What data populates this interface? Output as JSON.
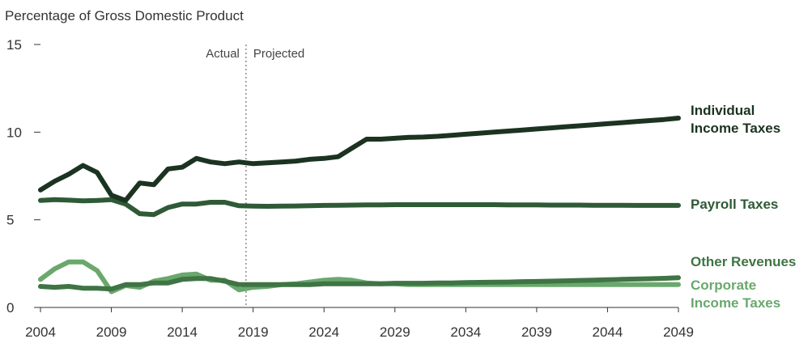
{
  "chart_data": {
    "type": "line",
    "ylabel": "Percentage of Gross Domestic Product",
    "xlim": [
      2004,
      2049
    ],
    "ylim": [
      0,
      15
    ],
    "x_ticks": [
      "2004",
      "2009",
      "2014",
      "2019",
      "2024",
      "2029",
      "2034",
      "2039",
      "2044",
      "2049"
    ],
    "y_ticks": [
      "0",
      "5",
      "10",
      "15"
    ],
    "annotations": {
      "actual": "Actual",
      "projected": "Projected",
      "divider_x": 2018.5
    },
    "x": [
      2004,
      2005,
      2006,
      2007,
      2008,
      2009,
      2010,
      2011,
      2012,
      2013,
      2014,
      2015,
      2016,
      2017,
      2018,
      2019,
      2020,
      2021,
      2022,
      2023,
      2024,
      2025,
      2026,
      2027,
      2028,
      2029,
      2030,
      2031,
      2032,
      2033,
      2034,
      2035,
      2036,
      2037,
      2038,
      2039,
      2040,
      2041,
      2042,
      2043,
      2044,
      2045,
      2046,
      2047,
      2048,
      2049
    ],
    "series": [
      {
        "name": "Individual Income Taxes",
        "label_lines": [
          "Individual",
          "Income Taxes"
        ],
        "color": "#1b3320",
        "values": [
          6.7,
          7.2,
          7.6,
          8.1,
          7.7,
          6.4,
          6.1,
          7.1,
          7.0,
          7.9,
          8.0,
          8.5,
          8.3,
          8.2,
          8.3,
          8.2,
          8.25,
          8.3,
          8.35,
          8.45,
          8.5,
          8.6,
          9.1,
          9.6,
          9.6,
          9.65,
          9.7,
          9.72,
          9.76,
          9.82,
          9.88,
          9.94,
          10.0,
          10.06,
          10.12,
          10.18,
          10.24,
          10.3,
          10.36,
          10.42,
          10.48,
          10.54,
          10.6,
          10.66,
          10.72,
          10.8
        ]
      },
      {
        "name": "Payroll Taxes",
        "label_lines": [
          "Payroll Taxes"
        ],
        "color": "#2f5a36",
        "values": [
          6.1,
          6.15,
          6.12,
          6.08,
          6.1,
          6.15,
          5.9,
          5.35,
          5.3,
          5.7,
          5.9,
          5.9,
          6.0,
          6.0,
          5.8,
          5.78,
          5.77,
          5.78,
          5.79,
          5.8,
          5.82,
          5.83,
          5.84,
          5.85,
          5.85,
          5.86,
          5.86,
          5.86,
          5.86,
          5.86,
          5.86,
          5.86,
          5.86,
          5.85,
          5.85,
          5.85,
          5.84,
          5.84,
          5.84,
          5.83,
          5.83,
          5.83,
          5.82,
          5.82,
          5.82,
          5.82
        ]
      },
      {
        "name": "Other Revenues",
        "label_lines": [
          "Other Revenues"
        ],
        "color": "#3f7444",
        "values": [
          1.2,
          1.15,
          1.2,
          1.1,
          1.1,
          1.05,
          1.3,
          1.3,
          1.4,
          1.4,
          1.6,
          1.65,
          1.65,
          1.5,
          1.3,
          1.3,
          1.3,
          1.3,
          1.3,
          1.3,
          1.35,
          1.35,
          1.35,
          1.35,
          1.35,
          1.38,
          1.38,
          1.38,
          1.4,
          1.4,
          1.42,
          1.43,
          1.44,
          1.45,
          1.47,
          1.48,
          1.5,
          1.52,
          1.54,
          1.56,
          1.58,
          1.6,
          1.62,
          1.64,
          1.66,
          1.7
        ]
      },
      {
        "name": "Corporate Income Taxes",
        "label_lines": [
          "Corporate",
          "Income Taxes"
        ],
        "color": "#6aa86d",
        "values": [
          1.6,
          2.2,
          2.6,
          2.6,
          2.1,
          0.9,
          1.25,
          1.15,
          1.5,
          1.65,
          1.85,
          1.9,
          1.55,
          1.55,
          1.0,
          1.15,
          1.2,
          1.3,
          1.35,
          1.45,
          1.55,
          1.6,
          1.55,
          1.4,
          1.35,
          1.35,
          1.3,
          1.3,
          1.3,
          1.3,
          1.3,
          1.3,
          1.3,
          1.3,
          1.3,
          1.3,
          1.3,
          1.3,
          1.3,
          1.3,
          1.3,
          1.3,
          1.3,
          1.3,
          1.3,
          1.3
        ]
      }
    ]
  }
}
